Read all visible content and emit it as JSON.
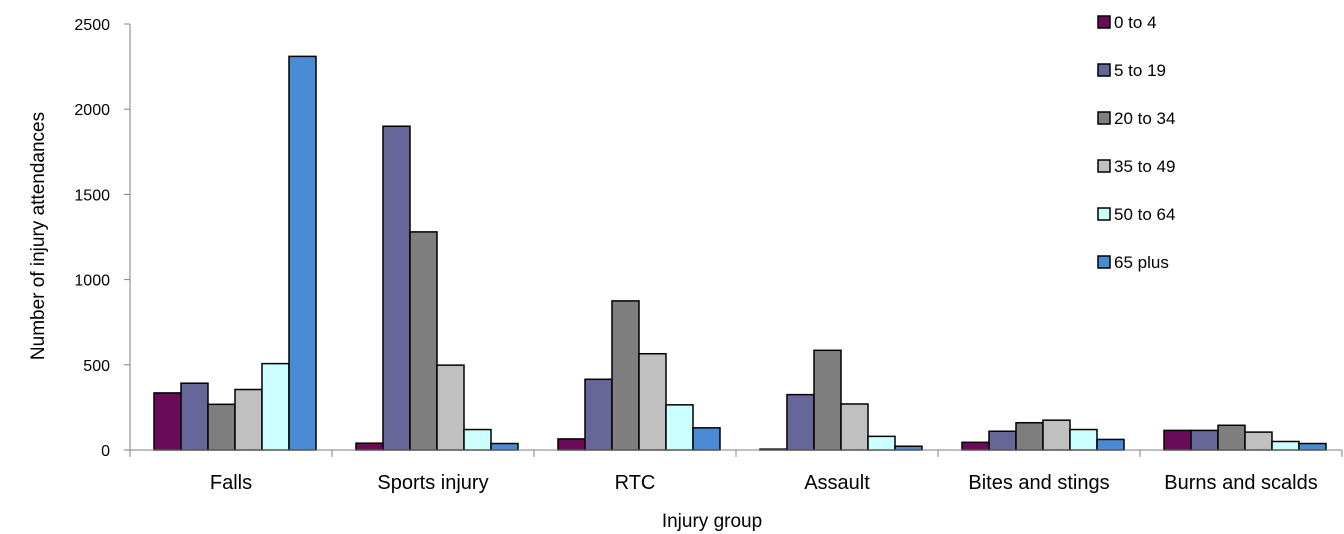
{
  "chart_data": {
    "type": "bar",
    "title": "",
    "xlabel": "Injury group",
    "ylabel": "Number of injury attendances",
    "ylim": [
      0,
      2500
    ],
    "yticks": [
      0,
      500,
      1000,
      1500,
      2000,
      2500
    ],
    "grid": false,
    "legend_position": "top-right",
    "categories": [
      "Falls",
      "Sports injury",
      "RTC",
      "Assault",
      "Bites and stings",
      "Burns and scalds"
    ],
    "series": [
      {
        "name": "0 to 4",
        "color": "#6b0a59",
        "values": [
          335,
          40,
          65,
          5,
          45,
          115
        ]
      },
      {
        "name": "5 to 19",
        "color": "#676699",
        "values": [
          392,
          1900,
          415,
          325,
          110,
          115
        ]
      },
      {
        "name": "20 to 34",
        "color": "#7f7f7f",
        "values": [
          268,
          1280,
          875,
          585,
          160,
          145
        ]
      },
      {
        "name": "35 to 49",
        "color": "#c0c0c0",
        "values": [
          355,
          498,
          565,
          270,
          175,
          105
        ]
      },
      {
        "name": "50 to 64",
        "color": "#ccffff",
        "values": [
          507,
          120,
          265,
          80,
          120,
          50
        ]
      },
      {
        "name": "65 plus",
        "color": "#4b8bd6",
        "values": [
          2310,
          38,
          130,
          22,
          62,
          38
        ]
      }
    ]
  }
}
